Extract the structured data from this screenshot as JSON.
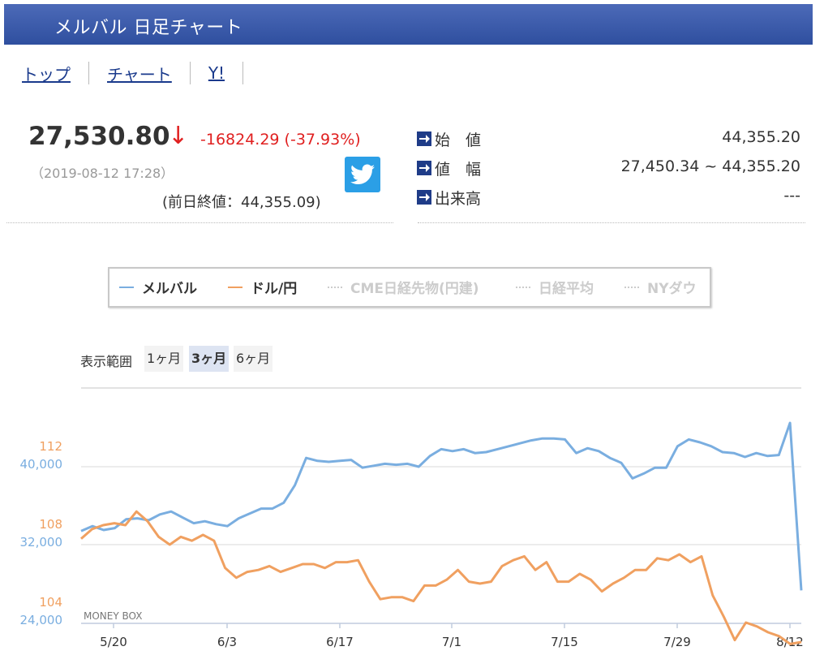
{
  "header": {
    "title": "メルバル 日足チャート"
  },
  "nav": {
    "items": [
      "トップ",
      "チャート",
      "Y!"
    ]
  },
  "quote": {
    "price": "27,530.80",
    "arrow": "↓",
    "change": "-16824.29 (-37.93%)",
    "timestamp": "（2019-08-12 17:28）",
    "prev_close": "(前日終値：44,355.09)"
  },
  "stats": [
    {
      "label": "始　値",
      "value": "44,355.20"
    },
    {
      "label": "値　幅",
      "value": "27,450.34 ~ 44,355.20"
    },
    {
      "label": "出来高",
      "value": "---"
    }
  ],
  "legend": {
    "items": [
      {
        "label": "メルバル",
        "active": true,
        "color": "#7aaee0"
      },
      {
        "label": "ドル/円",
        "active": true,
        "color": "#f0a060"
      },
      {
        "label": "CME日経先物(円建)",
        "active": false,
        "color": "#cccccc"
      },
      {
        "label": "日経平均",
        "active": false,
        "color": "#cccccc"
      },
      {
        "label": "NYダウ",
        "active": false,
        "color": "#cccccc"
      }
    ]
  },
  "range": {
    "label": "表示範囲",
    "options": [
      "1ヶ月",
      "3ヶ月",
      "6ヶ月"
    ],
    "selected": "3ヶ月"
  },
  "colors": {
    "merval": "#7aaee0",
    "usdjpy": "#f0a060",
    "header_bg": "#3a58a8",
    "down": "#e02020"
  },
  "chart_data": {
    "type": "line",
    "watermark": "MONEY BOX",
    "x_ticks": [
      "5/20",
      "6/3",
      "6/17",
      "7/1",
      "7/15",
      "7/29",
      "8/12"
    ],
    "y_left_merval": {
      "ticks": [
        "40,000",
        "32,000",
        "24,000"
      ],
      "range": [
        24000,
        40000
      ]
    },
    "y_left_usdjpy": {
      "ticks": [
        "112",
        "108",
        "104"
      ],
      "range": [
        104,
        112
      ]
    },
    "series": [
      {
        "name": "メルバル",
        "values": [
          33400,
          33900,
          33500,
          33700,
          34600,
          34700,
          34500,
          35100,
          35400,
          34800,
          34200,
          34400,
          34100,
          33900,
          34700,
          35200,
          35700,
          35700,
          36300,
          38100,
          40900,
          40600,
          40500,
          40600,
          40700,
          39900,
          40100,
          40300,
          40200,
          40300,
          40000,
          41100,
          41800,
          41600,
          41800,
          41400,
          41500,
          41800,
          42100,
          42400,
          42700,
          42900,
          42900,
          42800,
          41400,
          41900,
          41600,
          40900,
          40400,
          38800,
          39300,
          39900,
          39900,
          42100,
          42800,
          42500,
          42100,
          41500,
          41400,
          41000,
          41400,
          41100,
          41200,
          44500,
          27300
        ]
      },
      {
        "name": "ドル/円",
        "values": [
          108.3,
          108.8,
          109.0,
          109.1,
          109.0,
          109.7,
          109.2,
          108.4,
          108.0,
          108.4,
          108.2,
          108.5,
          108.2,
          106.8,
          106.3,
          106.6,
          106.7,
          106.9,
          106.6,
          106.8,
          107.0,
          107.0,
          106.8,
          107.1,
          107.1,
          107.2,
          106.1,
          105.2,
          105.3,
          105.3,
          105.1,
          105.9,
          105.9,
          106.2,
          106.7,
          106.1,
          106.0,
          106.1,
          106.9,
          107.2,
          107.4,
          106.7,
          107.1,
          106.1,
          106.1,
          106.5,
          106.2,
          105.6,
          106.0,
          106.3,
          106.7,
          106.7,
          107.3,
          107.2,
          107.5,
          107.1,
          107.4,
          105.4,
          104.3,
          103.1,
          104.0,
          103.8,
          103.5,
          103.3,
          102.9,
          103.0
        ]
      }
    ]
  }
}
